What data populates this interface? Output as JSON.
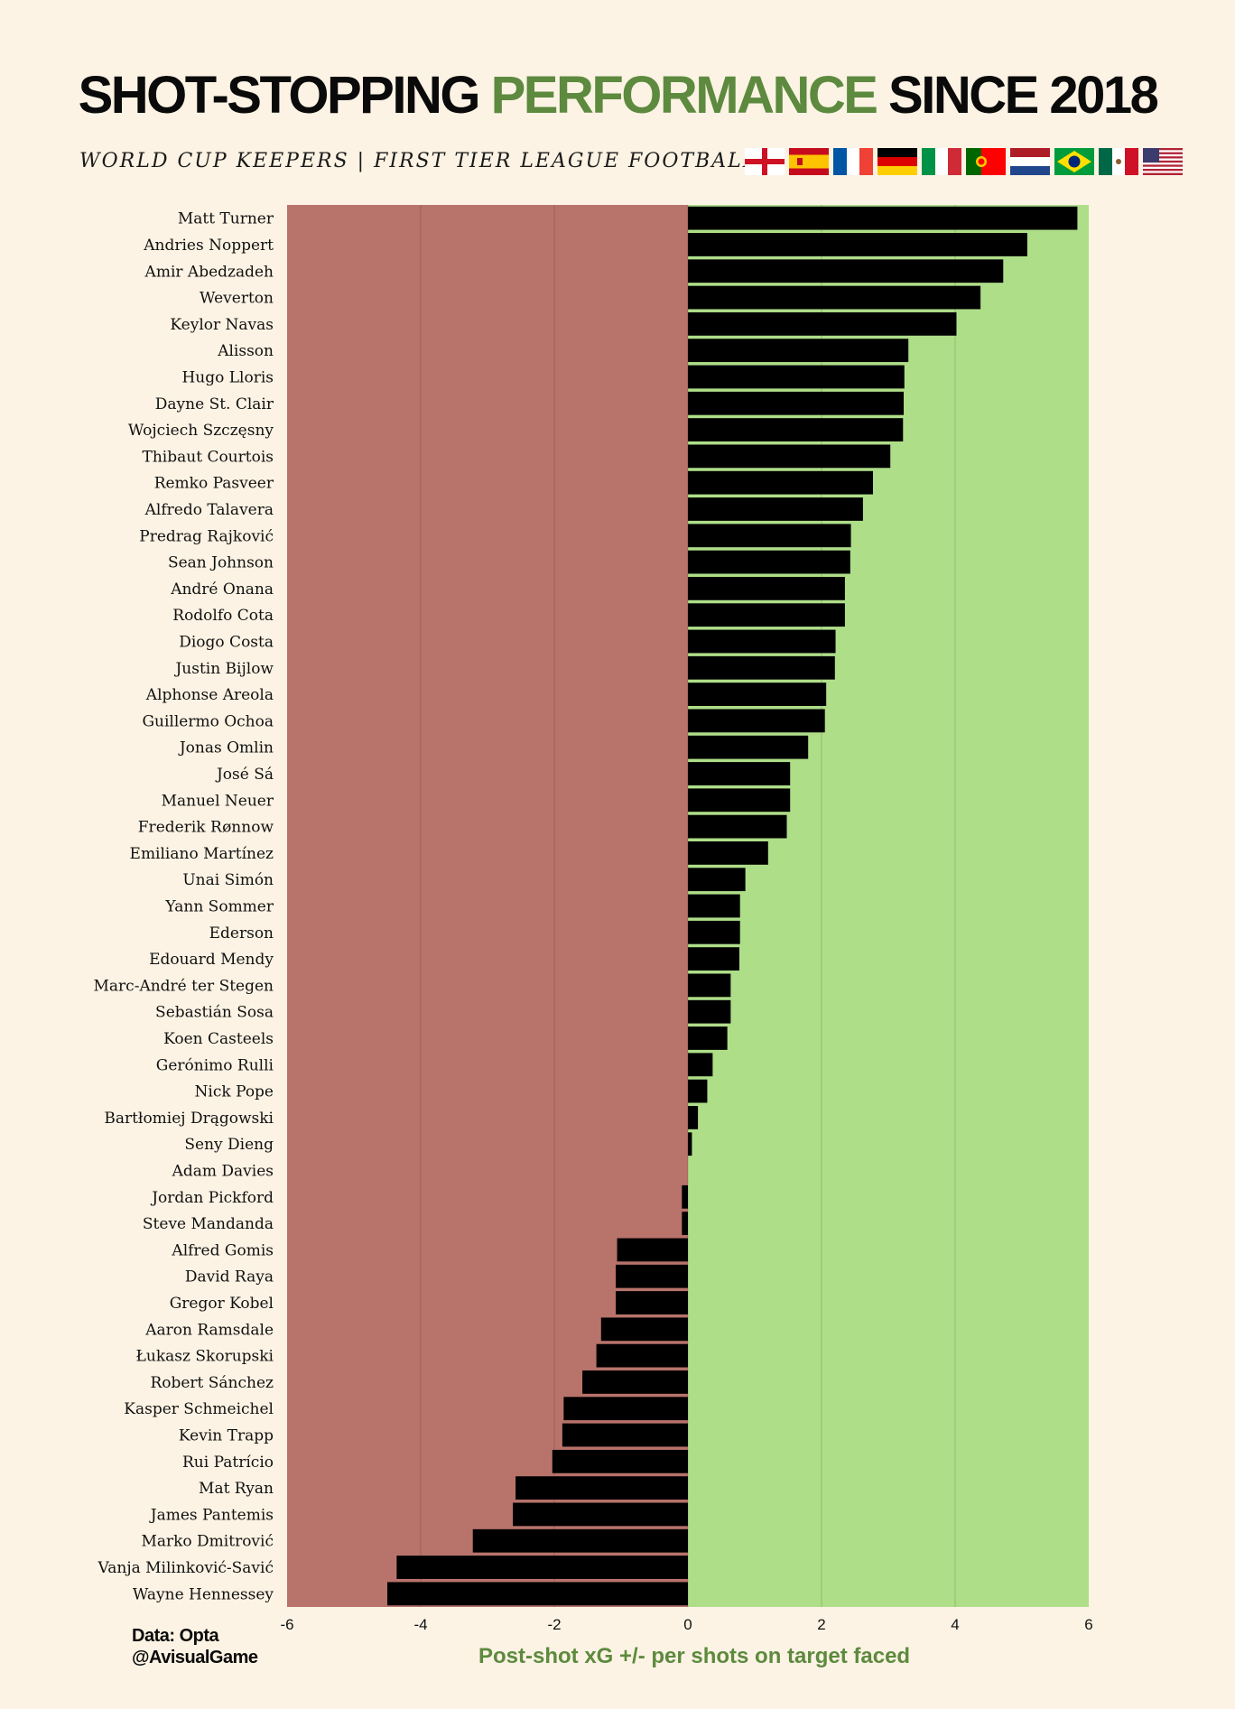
{
  "header": {
    "title_part1": "SHOT-STOPPING ",
    "title_highlight": "PERFORMANCE",
    "title_part2": " SINCE 2018",
    "subtitle": "WORLD CUP KEEPERS  |  FIRST TIER LEAGUE  FOOTBALL:",
    "flags": [
      "England",
      "Spain",
      "France",
      "Germany",
      "Italy",
      "Portugal",
      "Netherlands",
      "Brazil",
      "Mexico",
      "USA"
    ]
  },
  "credits": {
    "line1": "Data: Opta",
    "line2": "@AvisualGame"
  },
  "colors": {
    "background": "#fcf3e4",
    "negative_zone": "#b8736b",
    "positive_zone": "#afde89",
    "bar": "#000000",
    "accent": "#5d8a3e"
  },
  "chart_data": {
    "type": "bar",
    "orientation": "horizontal",
    "title": "SHOT-STOPPING PERFORMANCE SINCE 2018",
    "xlabel": "Post-shot xG +/- per shots on target faced",
    "ylabel": "",
    "xlim": [
      -6,
      6
    ],
    "xticks": [
      -6,
      -4,
      -2,
      0,
      2,
      4,
      6
    ],
    "grid": true,
    "categories": [
      "Matt Turner",
      "Andries Noppert",
      "Amir Abedzadeh",
      "Weverton",
      "Keylor Navas",
      "Alisson",
      "Hugo Lloris",
      "Dayne St. Clair",
      "Wojciech Szczęsny",
      "Thibaut Courtois",
      "Remko Pasveer",
      "Alfredo Talavera",
      "Predrag Rajković",
      "Sean Johnson",
      "André Onana",
      "Rodolfo Cota",
      "Diogo Costa",
      "Justin Bijlow",
      "Alphonse Areola",
      "Guillermo Ochoa",
      "Jonas Omlin",
      "José Sá",
      "Manuel Neuer",
      "Frederik Rønnow",
      "Emiliano Martínez",
      "Unai Simón",
      "Yann Sommer",
      "Ederson",
      "Edouard Mendy",
      "Marc-André ter Stegen",
      "Sebastián Sosa",
      "Koen Casteels",
      "Gerónimo Rulli",
      "Nick Pope",
      "Bartłomiej Drągowski",
      "Seny Dieng",
      "Adam Davies",
      "Jordan Pickford",
      "Steve Mandanda",
      "Alfred Gomis",
      "David Raya",
      "Gregor Kobel",
      "Aaron Ramsdale",
      "Łukasz Skorupski",
      "Robert Sánchez",
      "Kasper Schmeichel",
      "Kevin Trapp",
      "Rui Patrício",
      "Mat Ryan",
      "James Pantemis",
      "Marko Dmitrović",
      "Vanja Milinković-Savić",
      "Wayne Hennessey"
    ],
    "values": [
      5.83,
      5.08,
      4.72,
      4.38,
      4.02,
      3.3,
      3.24,
      3.23,
      3.22,
      3.03,
      2.77,
      2.62,
      2.44,
      2.43,
      2.35,
      2.35,
      2.21,
      2.2,
      2.07,
      2.05,
      1.8,
      1.53,
      1.53,
      1.48,
      1.2,
      0.86,
      0.78,
      0.78,
      0.77,
      0.64,
      0.64,
      0.59,
      0.37,
      0.29,
      0.15,
      0.06,
      0.0,
      -0.09,
      -0.09,
      -1.06,
      -1.08,
      -1.08,
      -1.3,
      -1.37,
      -1.58,
      -1.86,
      -1.88,
      -2.03,
      -2.58,
      -2.62,
      -3.22,
      -4.36,
      -4.5
    ]
  }
}
